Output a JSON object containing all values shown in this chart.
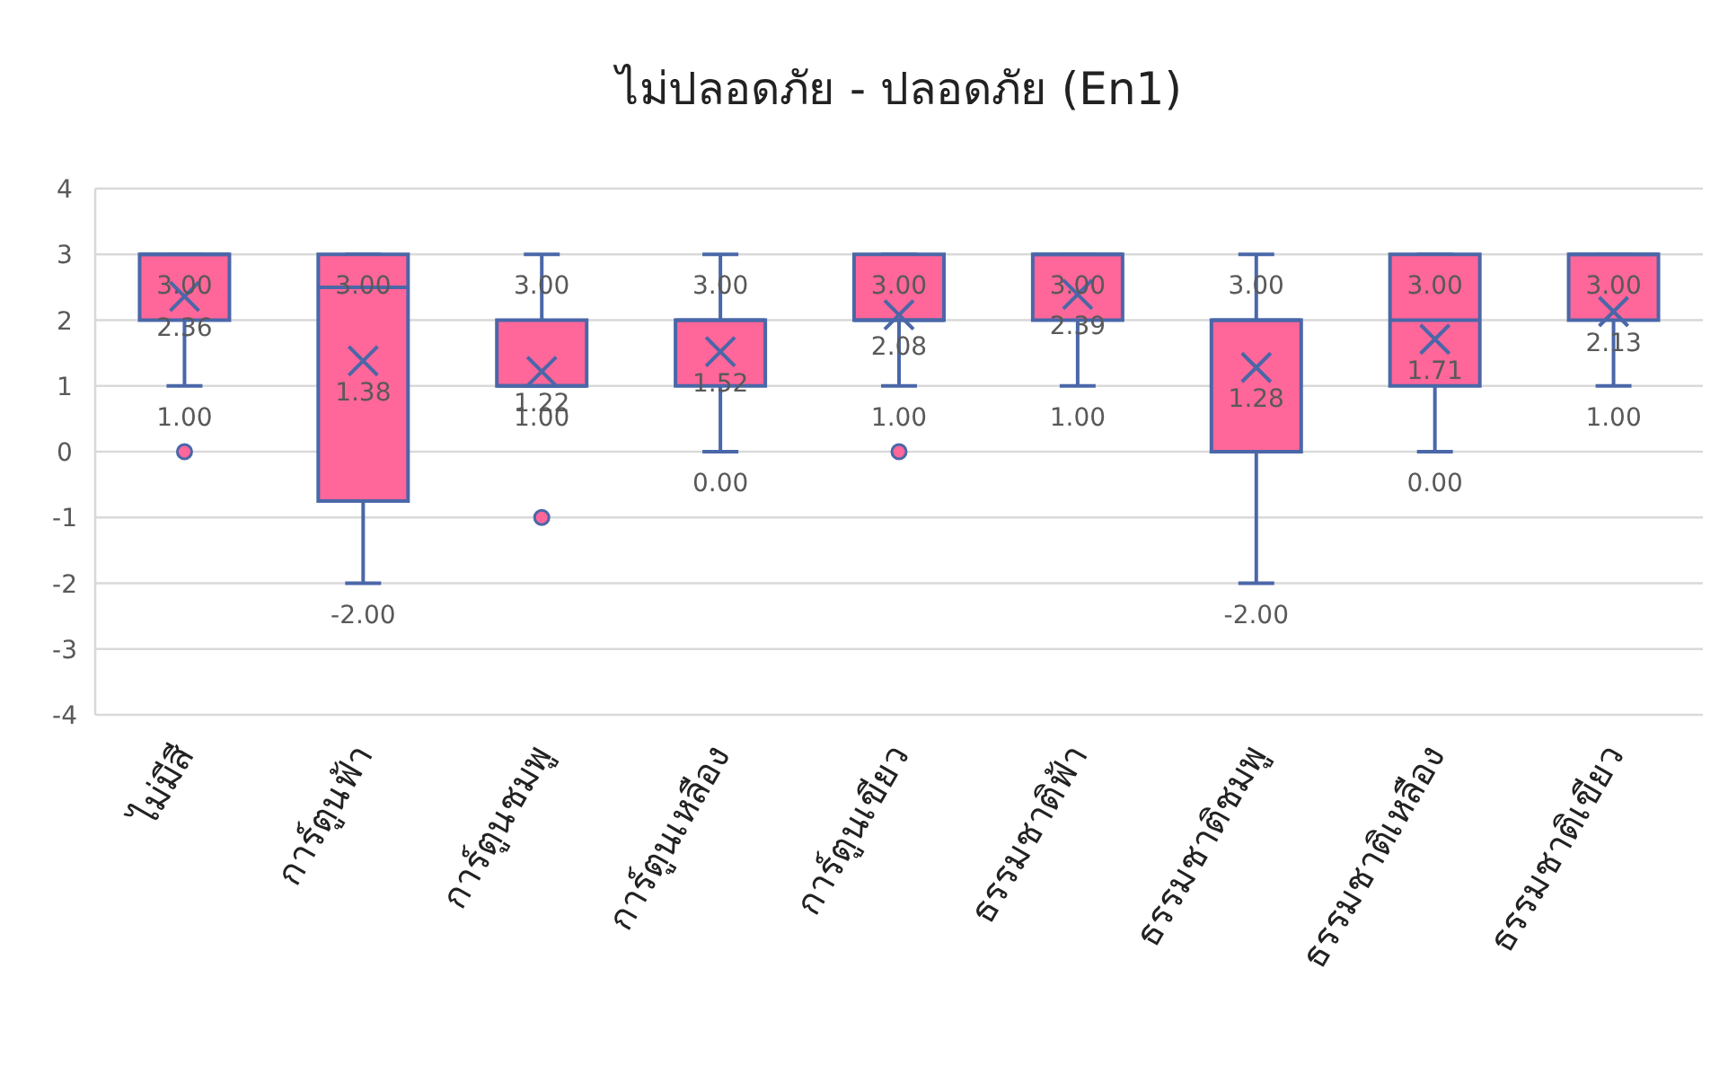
{
  "chart_data": {
    "type": "box",
    "title": "ไม่ปลอดภัย - ปลอดภัย (En1)",
    "categories": [
      "ไม่มีสี",
      "การ์ตูนฟ้า",
      "การ์ตูนชมพู",
      "การ์ตูนเหลือง",
      "การ์ตูนเขียว",
      "ธรรมชาติฟ้า",
      "ธรรมชาติชมพู",
      "ธรรมชาติเหลือง",
      "ธรรมชาติเขียว"
    ],
    "color": "#ff6699",
    "boxes": [
      {
        "low": 1,
        "q1": 2,
        "median": 3,
        "q3": 3,
        "high": 3,
        "mean": 2.36,
        "outliers": [
          0
        ]
      },
      {
        "low": -2,
        "q1": -0.75,
        "median": 2.5,
        "q3": 3,
        "high": 3,
        "mean": 1.38
      },
      {
        "low": 1,
        "q1": 1,
        "median": 1,
        "q3": 2,
        "high": 3,
        "mean": 1.22,
        "outliers": [
          -1
        ]
      },
      {
        "low": 0,
        "q1": 1,
        "median": 2,
        "q3": 2,
        "high": 3,
        "mean": 1.52
      },
      {
        "low": 1,
        "q1": 2,
        "median": 2,
        "q3": 3,
        "high": 3,
        "mean": 2.08,
        "outliers": [
          0
        ]
      },
      {
        "low": 1,
        "q1": 2,
        "median": 3,
        "q3": 3,
        "high": 3,
        "mean": 2.39
      },
      {
        "low": -2,
        "q1": 0,
        "median": 2,
        "q3": 2,
        "high": 3,
        "mean": 1.28
      },
      {
        "low": 0,
        "q1": 1,
        "median": 2,
        "q3": 3,
        "high": 3,
        "mean": 1.71
      },
      {
        "low": 1,
        "q1": 2,
        "median": 3,
        "q3": 3,
        "high": 3,
        "mean": 2.13
      }
    ],
    "ylim": [
      -4,
      4
    ],
    "yticks": [
      -4,
      -3,
      -2,
      -1,
      0,
      1,
      2,
      3,
      4
    ],
    "grid": "y",
    "value_labels": [
      [
        "3.00",
        "2.36",
        "1.00"
      ],
      [
        "3.00",
        "1.38",
        "-2.00"
      ],
      [
        "3.00",
        "1.22",
        "1.00"
      ],
      [
        "3.00",
        "1.52",
        "0.00"
      ],
      [
        "3.00",
        "2.08",
        "1.00"
      ],
      [
        "3.00",
        "2.39",
        "1.00"
      ],
      [
        "3.00",
        "1.28",
        "-2.00"
      ],
      [
        "3.00",
        "1.71",
        "0.00"
      ],
      [
        "3.00",
        "2.13",
        "1.00"
      ]
    ]
  }
}
